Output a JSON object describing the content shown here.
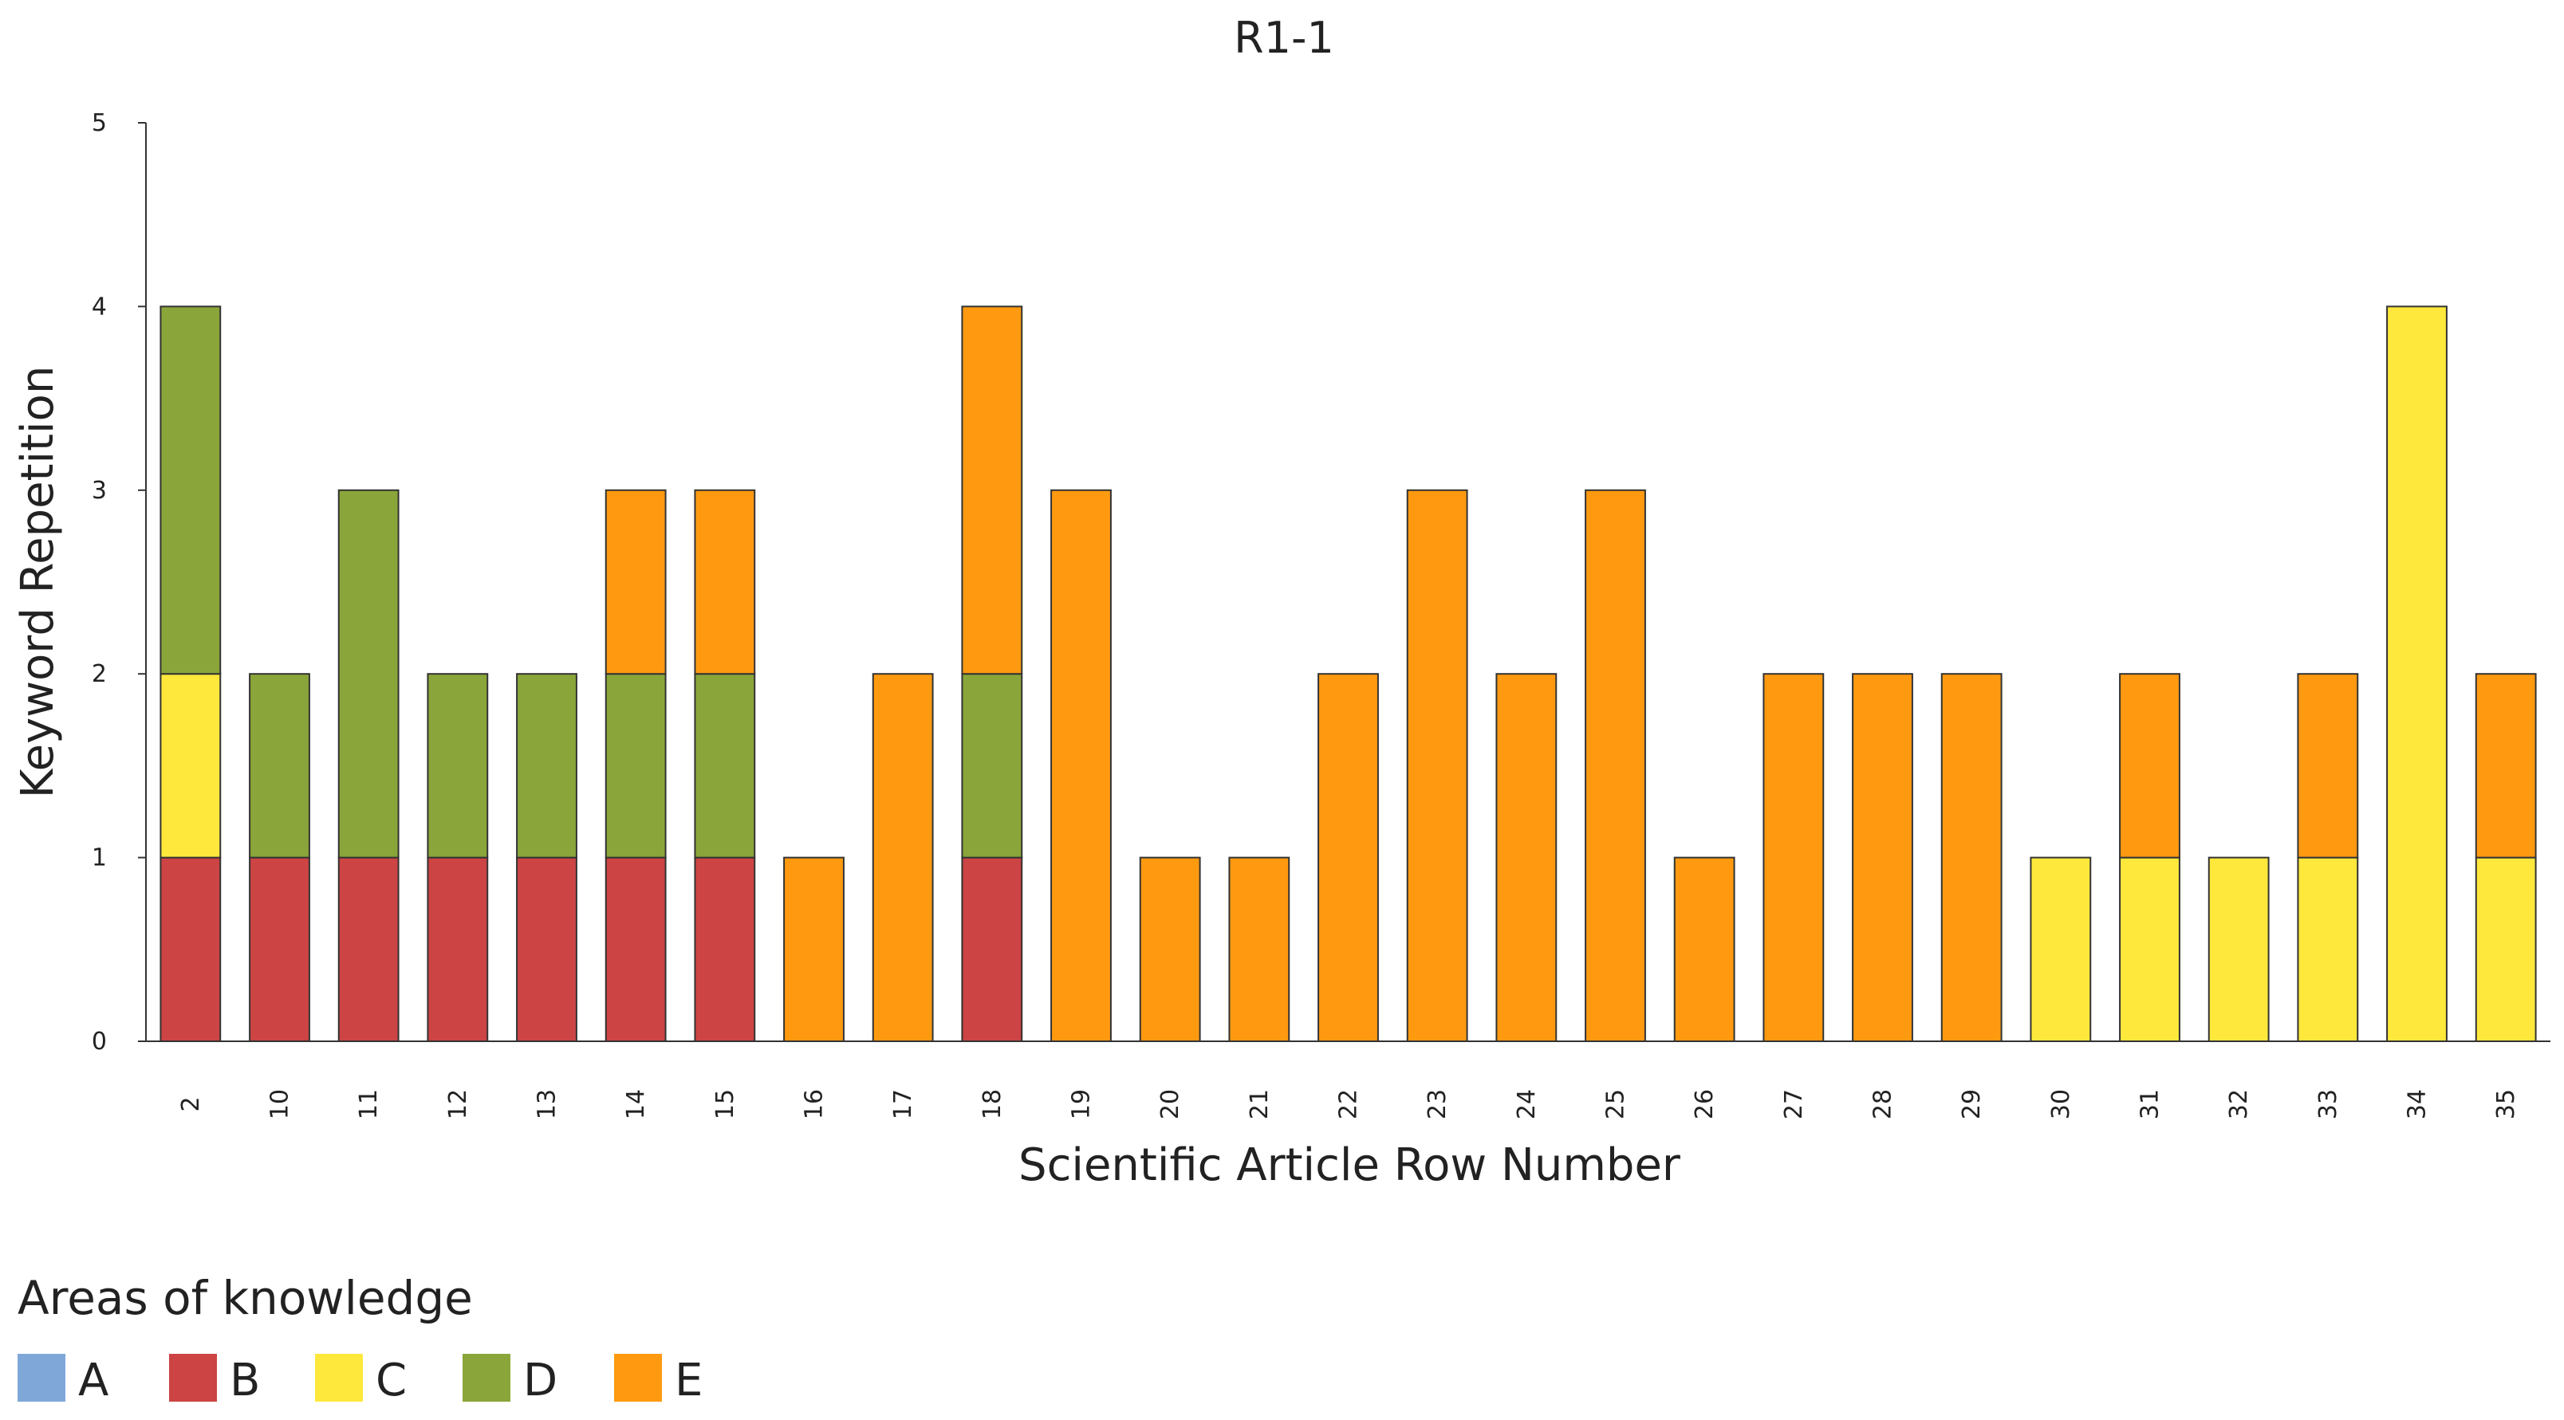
{
  "chart_data": {
    "type": "bar",
    "stacked": true,
    "title": "R1-1",
    "xlabel": "Scientific Article Row Number",
    "ylabel": "Keyword Repetition",
    "ylim": [
      0,
      5
    ],
    "yticks": [
      0,
      1,
      2,
      3,
      4,
      5
    ],
    "grid": false,
    "legend_title": "Areas of knowledge",
    "legend_position": "bottom-left",
    "categories": [
      "2",
      "10",
      "11",
      "12",
      "13",
      "14",
      "15",
      "16",
      "17",
      "18",
      "19",
      "20",
      "21",
      "22",
      "23",
      "24",
      "25",
      "26",
      "27",
      "28",
      "29",
      "30",
      "31",
      "32",
      "33",
      "34",
      "35"
    ],
    "series": [
      {
        "name": "A",
        "color": "#7fa8d8",
        "values": [
          0,
          0,
          0,
          0,
          0,
          0,
          0,
          0,
          0,
          0,
          0,
          0,
          0,
          0,
          0,
          0,
          0,
          0,
          0,
          0,
          0,
          0,
          0,
          0,
          0,
          0,
          0
        ]
      },
      {
        "name": "B",
        "color": "#cc4444",
        "values": [
          1,
          1,
          1,
          1,
          1,
          1,
          1,
          0,
          0,
          1,
          0,
          0,
          0,
          0,
          0,
          0,
          0,
          0,
          0,
          0,
          0,
          0,
          0,
          0,
          0,
          0,
          0
        ]
      },
      {
        "name": "C",
        "color": "#ffe83c",
        "values": [
          1,
          0,
          0,
          0,
          0,
          0,
          0,
          0,
          0,
          0,
          0,
          0,
          0,
          0,
          0,
          0,
          0,
          0,
          0,
          0,
          0,
          1,
          1,
          1,
          1,
          4,
          1
        ]
      },
      {
        "name": "D",
        "color": "#8aa63a",
        "values": [
          2,
          1,
          2,
          1,
          1,
          1,
          1,
          0,
          0,
          1,
          0,
          0,
          0,
          0,
          0,
          0,
          0,
          0,
          0,
          0,
          0,
          0,
          0,
          0,
          0,
          0,
          0
        ]
      },
      {
        "name": "E",
        "color": "#ff9a10",
        "values": [
          0,
          0,
          0,
          0,
          0,
          1,
          1,
          1,
          2,
          2,
          3,
          1,
          1,
          2,
          3,
          2,
          3,
          1,
          2,
          2,
          2,
          0,
          1,
          0,
          1,
          0,
          1
        ]
      }
    ]
  }
}
